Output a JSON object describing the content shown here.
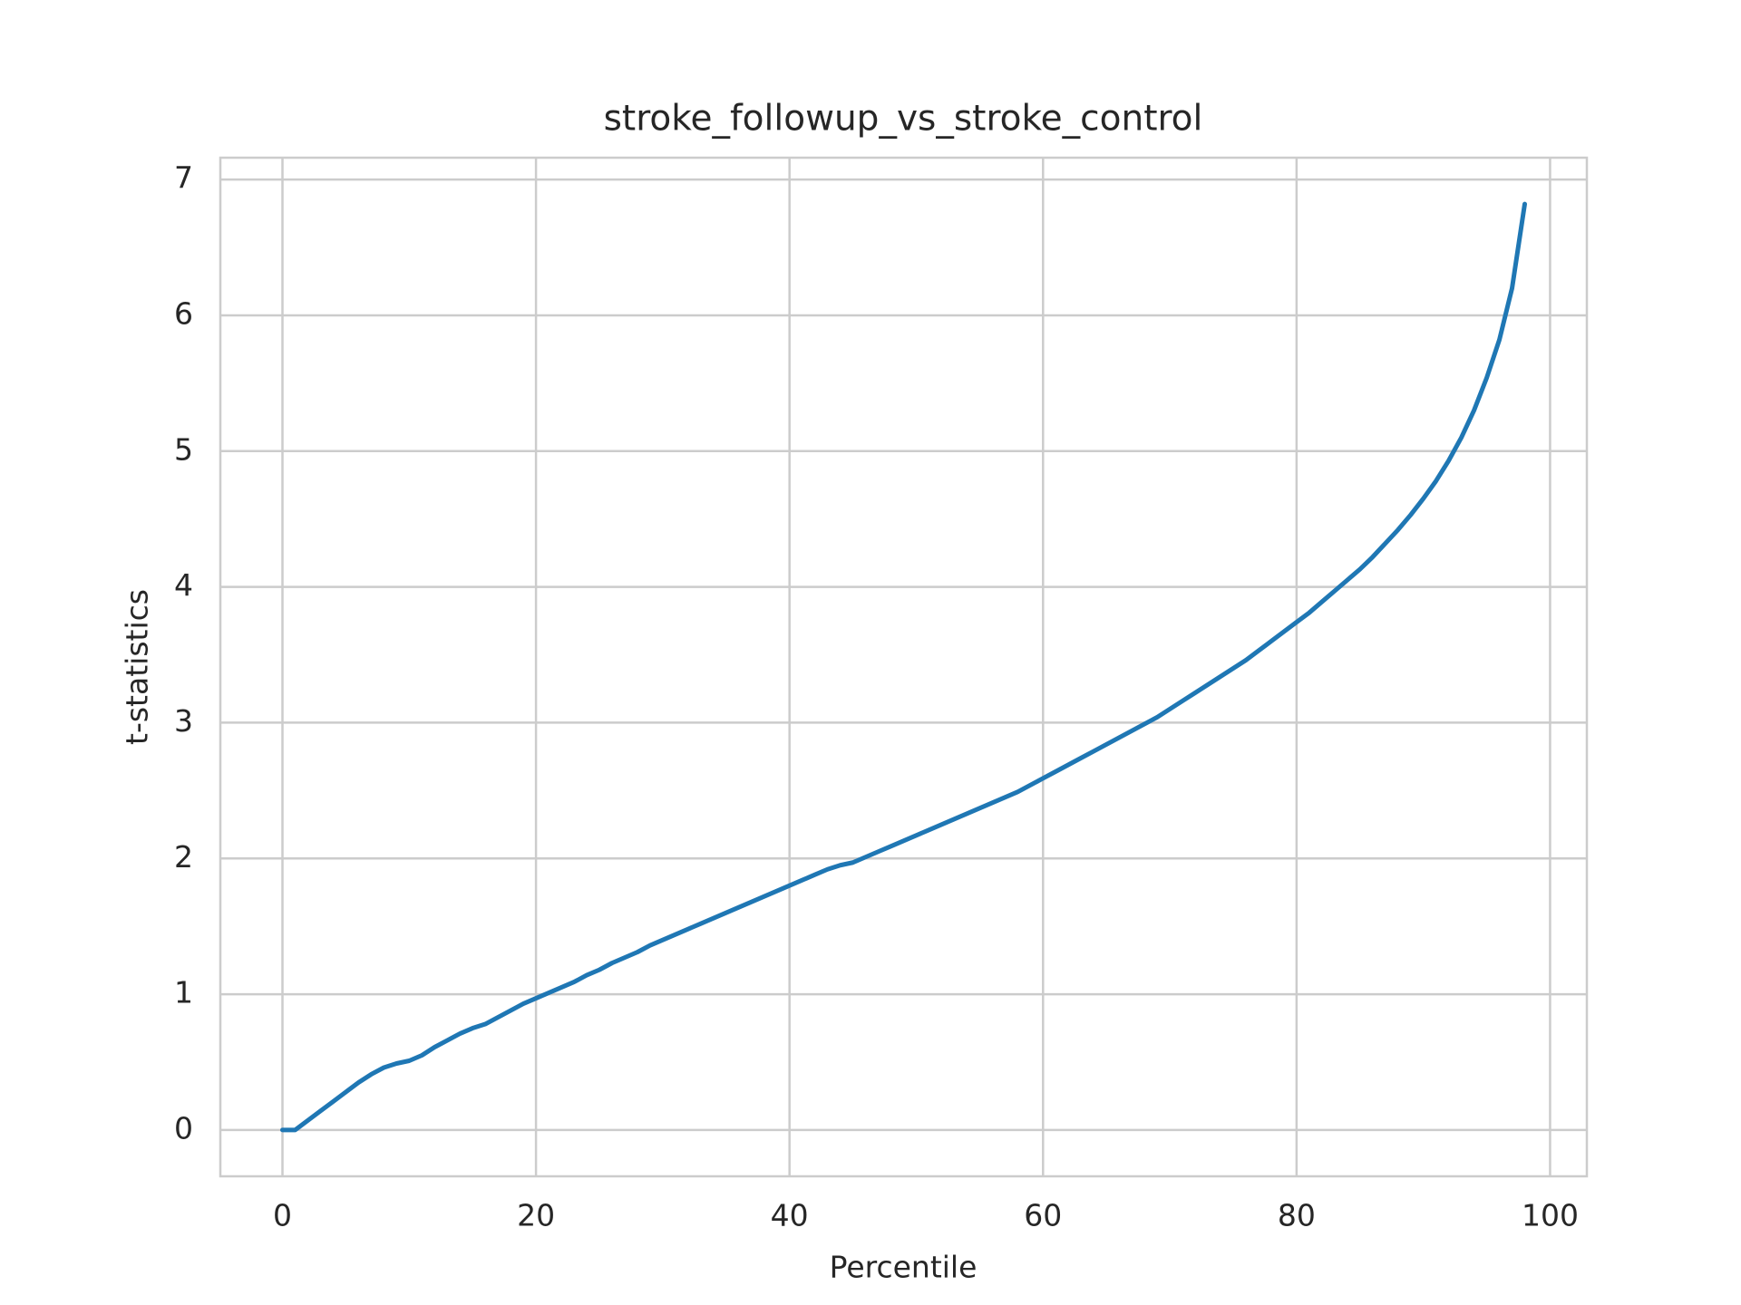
{
  "chart_data": {
    "type": "line",
    "title": "stroke_followup_vs_stroke_control",
    "x_label": "Percentile",
    "y_label": "t-statistics",
    "x": [
      0,
      1,
      2,
      3,
      4,
      5,
      6,
      7,
      8,
      9,
      10,
      11,
      12,
      13,
      14,
      15,
      16,
      17,
      18,
      19,
      20,
      21,
      22,
      23,
      24,
      25,
      26,
      27,
      28,
      29,
      30,
      31,
      32,
      33,
      34,
      35,
      36,
      37,
      38,
      39,
      40,
      41,
      42,
      43,
      44,
      45,
      46,
      47,
      48,
      49,
      50,
      51,
      52,
      53,
      54,
      55,
      56,
      57,
      58,
      59,
      60,
      61,
      62,
      63,
      64,
      65,
      66,
      67,
      68,
      69,
      70,
      71,
      72,
      73,
      74,
      75,
      76,
      77,
      78,
      79,
      80,
      81,
      82,
      83,
      84,
      85,
      86,
      87,
      88,
      89,
      90,
      91,
      92,
      93,
      94,
      95,
      96,
      97,
      98
    ],
    "series": [
      {
        "color": "#1f77b4",
        "values": [
          0,
          0,
          0.07,
          0.14,
          0.21,
          0.28,
          0.35,
          0.41,
          0.46,
          0.49,
          0.51,
          0.55,
          0.61,
          0.66,
          0.71,
          0.75,
          0.78,
          0.83,
          0.88,
          0.93,
          0.97,
          1.01,
          1.05,
          1.09,
          1.14,
          1.18,
          1.23,
          1.27,
          1.31,
          1.36,
          1.4,
          1.44,
          1.48,
          1.52,
          1.56,
          1.6,
          1.64,
          1.68,
          1.72,
          1.76,
          1.8,
          1.84,
          1.88,
          1.92,
          1.95,
          1.97,
          2.01,
          2.05,
          2.09,
          2.13,
          2.17,
          2.21,
          2.25,
          2.29,
          2.33,
          2.37,
          2.41,
          2.45,
          2.49,
          2.54,
          2.59,
          2.64,
          2.69,
          2.74,
          2.79,
          2.84,
          2.89,
          2.94,
          2.99,
          3.04,
          3.1,
          3.16,
          3.22,
          3.28,
          3.34,
          3.4,
          3.46,
          3.53,
          3.6,
          3.67,
          3.74,
          3.81,
          3.89,
          3.97,
          4.05,
          4.13,
          4.22,
          4.32,
          4.42,
          4.53,
          4.65,
          4.78,
          4.93,
          5.1,
          5.3,
          5.54,
          5.82,
          6.2,
          6.82
        ]
      }
    ],
    "xlim": [
      -4.9,
      102.9
    ],
    "xticks": [
      0,
      20,
      40,
      60,
      80,
      100
    ],
    "ylim": [
      -0.341,
      7.161
    ],
    "yticks": [
      0,
      1,
      2,
      3,
      4,
      5,
      6,
      7
    ],
    "grid": true
  }
}
